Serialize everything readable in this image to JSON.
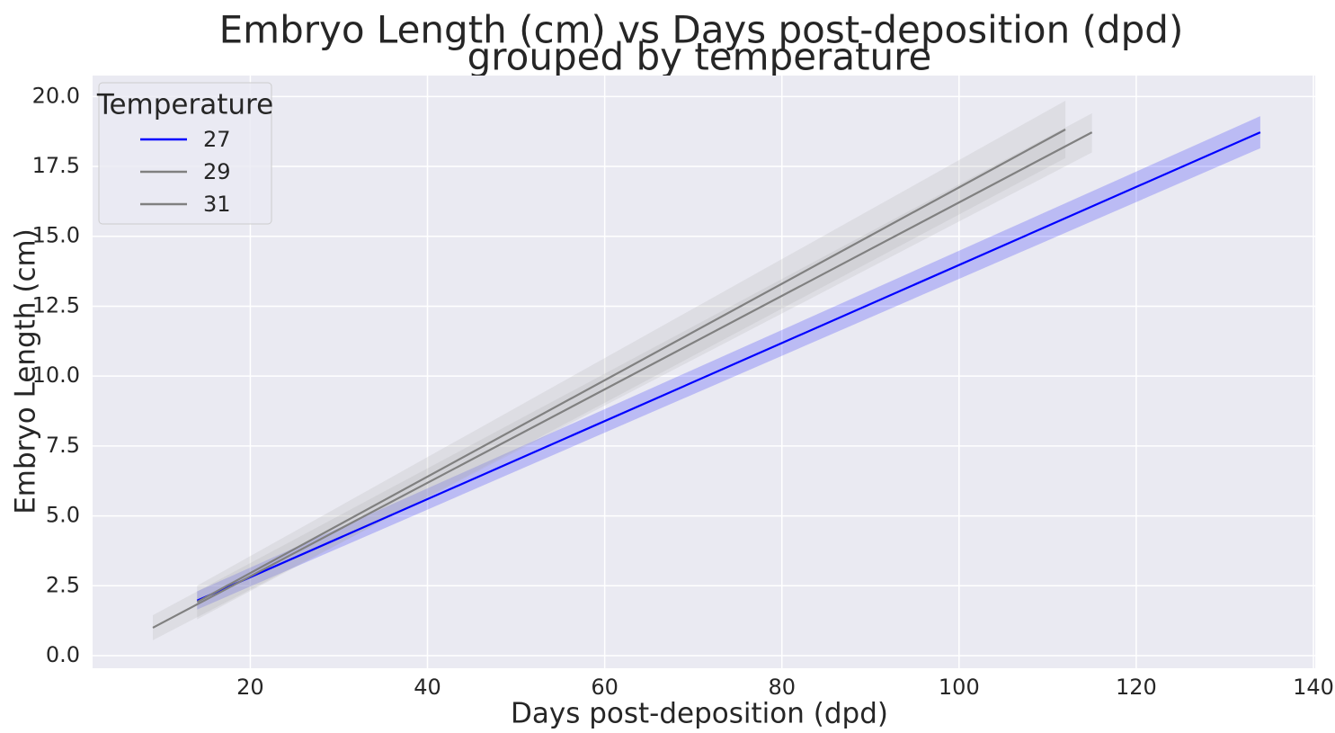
{
  "chart_data": {
    "type": "line",
    "title_line1": "Embryo Length (cm) vs Days post-deposition (dpd)",
    "title_line2": "grouped by temperature",
    "xlabel": "Days post-deposition (dpd)",
    "ylabel": "Embryo Length (cm)",
    "xlim": [
      2.2,
      140.2
    ],
    "ylim": [
      -0.45,
      20.75
    ],
    "xticks": [
      20,
      40,
      60,
      80,
      100,
      120,
      140
    ],
    "xtick_labels": [
      "20",
      "40",
      "60",
      "80",
      "100",
      "120",
      "140"
    ],
    "yticks": [
      0,
      2.5,
      5,
      7.5,
      10,
      12.5,
      15,
      17.5,
      20
    ],
    "ytick_labels": [
      "0.0",
      "2.5",
      "5.0",
      "7.5",
      "10.0",
      "12.5",
      "15.0",
      "17.5",
      "20.0"
    ],
    "grid": true,
    "background": "#EAEAF2",
    "legend": {
      "title": "Temperature",
      "position": "top-left"
    },
    "series": [
      {
        "name": "27",
        "color": "#0000FF",
        "band_color": "#0000FF",
        "x": [
          14,
          134
        ],
        "y": [
          1.97,
          18.72
        ],
        "ci_lower": [
          1.65,
          18.15
        ],
        "ci_upper": [
          2.3,
          19.3
        ]
      },
      {
        "name": "29",
        "color": "#808080",
        "band_color": "#A9A9A9",
        "x": [
          14,
          112
        ],
        "y": [
          1.92,
          18.82
        ],
        "ci_lower": [
          1.3,
          17.8
        ],
        "ci_upper": [
          2.5,
          19.85
        ]
      },
      {
        "name": "31",
        "color": "#808080",
        "band_color": "#A9A9A9",
        "x": [
          9,
          115
        ],
        "y": [
          1.0,
          18.72
        ],
        "ci_lower": [
          0.55,
          18.0
        ],
        "ci_upper": [
          1.45,
          19.4
        ]
      }
    ]
  }
}
